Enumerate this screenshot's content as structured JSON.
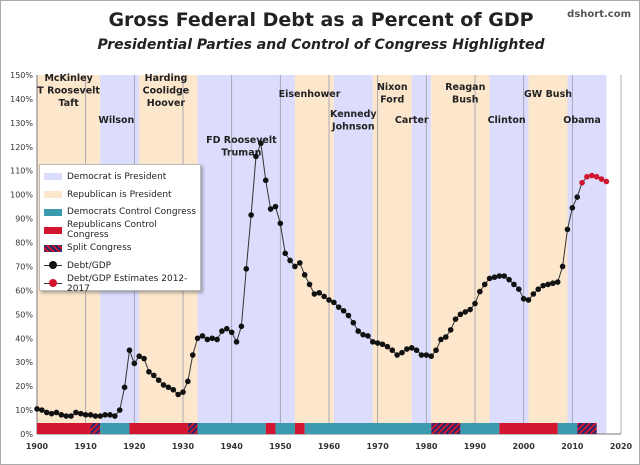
{
  "header": {
    "title": "Gross Federal Debt as a Percent of GDP",
    "subtitle": "Presidential Parties and Control of Congress Highlighted",
    "credit": "dshort.com"
  },
  "legend": [
    "Democrat is President",
    "Republican is President",
    "Democrats Control Congress",
    "Republicans Control Congress",
    "Split Congress",
    "Debt/GDP",
    "Debt/GDP Estimates 2012-2017"
  ],
  "colors": {
    "dem_president": "#dcdcfc",
    "rep_president": "#fce6cc",
    "dem_congress": "#3a9aae",
    "rep_congress": "#d3152f",
    "split_a": "#1f2a6e",
    "split_b": "#d3152f",
    "debt": "#111111",
    "estimate": "#d3152f"
  },
  "chart_data": {
    "type": "line",
    "title": "Gross Federal Debt as a Percent of GDP",
    "subtitle": "Presidential Parties and Control of Congress Highlighted",
    "xlim": [
      1900,
      2020
    ],
    "ylim": [
      0,
      150
    ],
    "x_ticks": [
      "1900",
      "1910",
      "1920",
      "1930",
      "1940",
      "1950",
      "1960",
      "1970",
      "1980",
      "1990",
      "2000",
      "2010",
      "2020"
    ],
    "y_ticks": [
      "0%",
      "10%",
      "20%",
      "30%",
      "40%",
      "50%",
      "60%",
      "70%",
      "80%",
      "90%",
      "100%",
      "110%",
      "120%",
      "130%",
      "140%",
      "150%"
    ],
    "grid": "vertical every 10 years",
    "legend_position": "left-middle",
    "series": [
      {
        "name": "Debt/GDP",
        "x_start": 1900,
        "values": [
          10.5,
          10,
          9,
          8.5,
          9,
          8,
          7.5,
          7.5,
          9,
          8.5,
          8,
          8,
          7.5,
          7.5,
          8,
          8,
          7.5,
          10,
          19.5,
          35,
          29.5,
          32.5,
          31.5,
          26,
          24.5,
          22.5,
          20.5,
          19.5,
          18.5,
          16.5,
          17.5,
          22,
          33,
          40,
          41,
          39.5,
          40,
          39.5,
          43,
          44,
          42.5,
          38.5,
          45,
          69,
          91.5,
          116,
          121.5,
          106,
          94,
          95,
          88,
          75.5,
          72.5,
          70,
          71.5,
          66.5,
          62.5,
          58.5,
          59,
          57.5,
          56,
          55,
          53,
          51.5,
          49.5,
          46.5,
          43,
          41.5,
          41,
          38.5,
          38,
          37.5,
          36.5,
          35,
          33,
          34,
          35.5,
          36,
          35,
          33,
          33,
          32.5,
          35,
          39.5,
          40.5,
          43.5,
          48,
          50,
          51,
          52,
          54.5,
          59.5,
          62.5,
          65,
          65.5,
          66,
          66,
          64.5,
          62.5,
          60.5,
          56.5,
          56,
          58.5,
          60.5,
          62,
          62.5,
          63,
          63.5,
          70,
          85.5,
          94.5,
          99
        ]
      },
      {
        "name": "Debt/GDP Estimates 2012-2017",
        "x_start": 2012,
        "values": [
          105,
          107.5,
          108,
          107.5,
          106.5,
          105.5
        ]
      }
    ],
    "presidencies": [
      {
        "party": "R",
        "from": 1900,
        "to": 1913,
        "label": [
          "McKinley",
          "T Roosevelt",
          "Taft"
        ]
      },
      {
        "party": "D",
        "from": 1913,
        "to": 1921,
        "label": [
          "Wilson"
        ]
      },
      {
        "party": "R",
        "from": 1921,
        "to": 1933,
        "label": [
          "Harding",
          "Coolidge",
          "Hoover"
        ]
      },
      {
        "party": "D",
        "from": 1933,
        "to": 1953,
        "label": [
          "FD Roosevelt",
          "Truman"
        ]
      },
      {
        "party": "R",
        "from": 1953,
        "to": 1961,
        "label": [
          "Eisenhower"
        ]
      },
      {
        "party": "D",
        "from": 1961,
        "to": 1969,
        "label": [
          "Kennedy",
          "Johnson"
        ]
      },
      {
        "party": "R",
        "from": 1969,
        "to": 1977,
        "label": [
          "Nixon",
          "Ford"
        ]
      },
      {
        "party": "D",
        "from": 1977,
        "to": 1981,
        "label": [
          "Carter"
        ]
      },
      {
        "party": "R",
        "from": 1981,
        "to": 1993,
        "label": [
          "Reagan",
          "Bush"
        ]
      },
      {
        "party": "D",
        "from": 1993,
        "to": 2001,
        "label": [
          "Clinton"
        ]
      },
      {
        "party": "R",
        "from": 2001,
        "to": 2009,
        "label": [
          "GW Bush"
        ]
      },
      {
        "party": "D",
        "from": 2009,
        "to": 2017,
        "label": [
          "Obama"
        ]
      }
    ],
    "congress": [
      {
        "control": "R",
        "from": 1900,
        "to": 1911
      },
      {
        "control": "S",
        "from": 1911,
        "to": 1913
      },
      {
        "control": "D",
        "from": 1913,
        "to": 1919
      },
      {
        "control": "R",
        "from": 1919,
        "to": 1931
      },
      {
        "control": "S",
        "from": 1931,
        "to": 1933
      },
      {
        "control": "D",
        "from": 1933,
        "to": 1947
      },
      {
        "control": "R",
        "from": 1947,
        "to": 1949
      },
      {
        "control": "D",
        "from": 1949,
        "to": 1953
      },
      {
        "control": "R",
        "from": 1953,
        "to": 1955
      },
      {
        "control": "D",
        "from": 1955,
        "to": 1981
      },
      {
        "control": "S",
        "from": 1981,
        "to": 1987
      },
      {
        "control": "D",
        "from": 1987,
        "to": 1995
      },
      {
        "control": "R",
        "from": 1995,
        "to": 2007
      },
      {
        "control": "D",
        "from": 2007,
        "to": 2011
      },
      {
        "control": "S",
        "from": 2011,
        "to": 2015
      }
    ]
  }
}
